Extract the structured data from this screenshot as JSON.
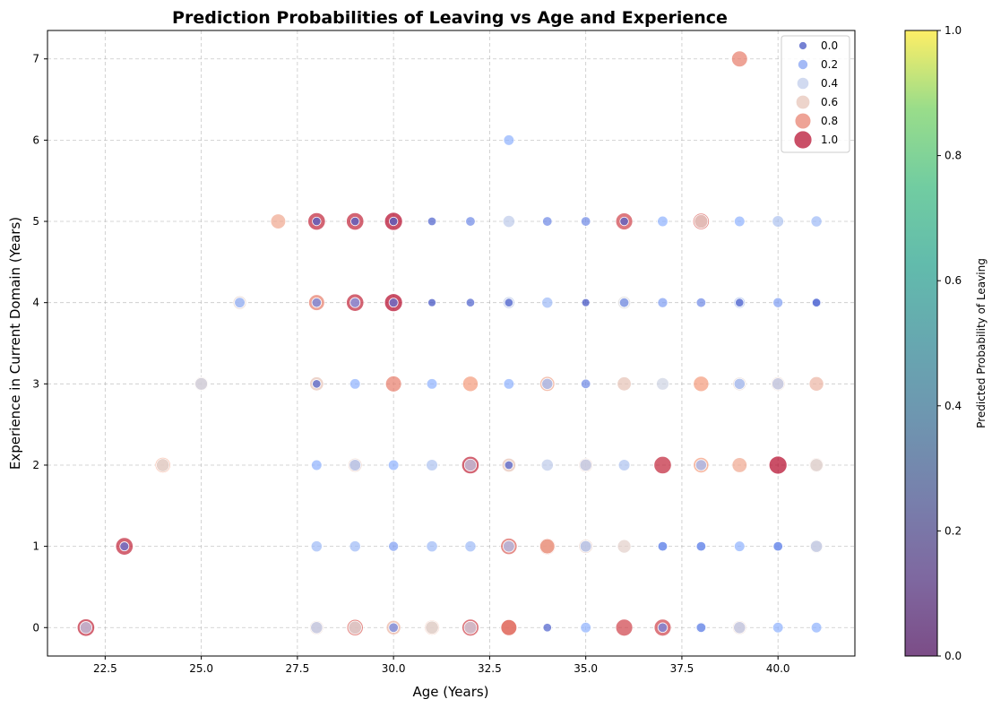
{
  "chart_data": {
    "type": "scatter",
    "title": "Prediction Probabilities of Leaving vs Age and Experience",
    "xlabel": "Age (Years)",
    "ylabel": "Experience in Current Domain (Years)",
    "xlim": [
      21.0,
      42.0
    ],
    "ylim": [
      -0.35,
      7.35
    ],
    "xticks": [
      22.5,
      25.0,
      27.5,
      30.0,
      32.5,
      35.0,
      37.5,
      40.0
    ],
    "xtick_labels": [
      "22.5",
      "25.0",
      "27.5",
      "30.0",
      "32.5",
      "35.0",
      "37.5",
      "40.0"
    ],
    "yticks": [
      0,
      1,
      2,
      3,
      4,
      5,
      6,
      7
    ],
    "ytick_labels": [
      "0",
      "1",
      "2",
      "3",
      "4",
      "5",
      "6",
      "7"
    ],
    "grid": true,
    "hue_colormap": "coolwarm",
    "size_range_prob": [
      0,
      1
    ],
    "legend": {
      "placement": "top-right",
      "entries": [
        {
          "label": "0.0",
          "p": 0.0
        },
        {
          "label": "0.2",
          "p": 0.2
        },
        {
          "label": "0.4",
          "p": 0.4
        },
        {
          "label": "0.6",
          "p": 0.6
        },
        {
          "label": "0.8",
          "p": 0.8
        },
        {
          "label": "1.0",
          "p": 1.0
        }
      ]
    },
    "colorbar": {
      "label": "Predicted Probability of Leaving",
      "colormap": "viridis",
      "ticks": [
        0.0,
        0.2,
        0.4,
        0.6,
        0.8,
        1.0
      ],
      "tick_labels": [
        "0.0",
        "0.2",
        "0.4",
        "0.6",
        "0.8",
        "1.0"
      ],
      "range": [
        0,
        1
      ]
    },
    "points": [
      {
        "x": 22,
        "y": 0,
        "p": 0.95
      },
      {
        "x": 22,
        "y": 0,
        "p": 0.4
      },
      {
        "x": 23,
        "y": 1,
        "p": 0.95
      },
      {
        "x": 23,
        "y": 1,
        "p": 0.1
      },
      {
        "x": 24,
        "y": 2,
        "p": 0.75
      },
      {
        "x": 24,
        "y": 2,
        "p": 0.5
      },
      {
        "x": 25,
        "y": 3,
        "p": 0.6
      },
      {
        "x": 25,
        "y": 3,
        "p": 0.45
      },
      {
        "x": 26,
        "y": 4,
        "p": 0.55
      },
      {
        "x": 26,
        "y": 4,
        "p": 0.25
      },
      {
        "x": 27,
        "y": 5,
        "p": 0.7
      },
      {
        "x": 28,
        "y": 0,
        "p": 0.6
      },
      {
        "x": 28,
        "y": 0,
        "p": 0.4
      },
      {
        "x": 28,
        "y": 1,
        "p": 0.3
      },
      {
        "x": 28,
        "y": 2,
        "p": 0.25
      },
      {
        "x": 28,
        "y": 3,
        "p": 0.6
      },
      {
        "x": 28,
        "y": 3,
        "p": 0.05
      },
      {
        "x": 28,
        "y": 4,
        "p": 0.8
      },
      {
        "x": 28,
        "y": 4,
        "p": 0.15
      },
      {
        "x": 28,
        "y": 5,
        "p": 0.95
      },
      {
        "x": 28,
        "y": 5,
        "p": 0.05
      },
      {
        "x": 29,
        "y": 0,
        "p": 0.85
      },
      {
        "x": 29,
        "y": 0,
        "p": 0.5
      },
      {
        "x": 29,
        "y": 1,
        "p": 0.3
      },
      {
        "x": 29,
        "y": 2,
        "p": 0.6
      },
      {
        "x": 29,
        "y": 2,
        "p": 0.35
      },
      {
        "x": 29,
        "y": 3,
        "p": 0.25
      },
      {
        "x": 29,
        "y": 4,
        "p": 0.95
      },
      {
        "x": 29,
        "y": 4,
        "p": 0.2
      },
      {
        "x": 29,
        "y": 5,
        "p": 0.95
      },
      {
        "x": 29,
        "y": 5,
        "p": 0.05
      },
      {
        "x": 30,
        "y": 0,
        "p": 0.65
      },
      {
        "x": 30,
        "y": 0,
        "p": 0.15
      },
      {
        "x": 30,
        "y": 1,
        "p": 0.2
      },
      {
        "x": 30,
        "y": 2,
        "p": 0.25
      },
      {
        "x": 30,
        "y": 3,
        "p": 0.8
      },
      {
        "x": 30,
        "y": 4,
        "p": 1.0
      },
      {
        "x": 30,
        "y": 4,
        "p": 0.1
      },
      {
        "x": 30,
        "y": 5,
        "p": 1.0
      },
      {
        "x": 30,
        "y": 5,
        "p": 0.05
      },
      {
        "x": 31,
        "y": 0,
        "p": 0.7
      },
      {
        "x": 31,
        "y": 0,
        "p": 0.5
      },
      {
        "x": 31,
        "y": 1,
        "p": 0.3
      },
      {
        "x": 31,
        "y": 2,
        "p": 0.35
      },
      {
        "x": 31,
        "y": 3,
        "p": 0.25
      },
      {
        "x": 31,
        "y": 4,
        "p": 0.0
      },
      {
        "x": 31,
        "y": 5,
        "p": 0.05
      },
      {
        "x": 32,
        "y": 0,
        "p": 0.9
      },
      {
        "x": 32,
        "y": 0,
        "p": 0.45
      },
      {
        "x": 32,
        "y": 1,
        "p": 0.3
      },
      {
        "x": 32,
        "y": 2,
        "p": 0.95
      },
      {
        "x": 32,
        "y": 2,
        "p": 0.4
      },
      {
        "x": 32,
        "y": 3,
        "p": 0.75
      },
      {
        "x": 32,
        "y": 4,
        "p": 0.05
      },
      {
        "x": 32,
        "y": 5,
        "p": 0.15
      },
      {
        "x": 33,
        "y": 0,
        "p": 0.9
      },
      {
        "x": 33,
        "y": 0,
        "p": 0.8
      },
      {
        "x": 33,
        "y": 1,
        "p": 0.85
      },
      {
        "x": 33,
        "y": 1,
        "p": 0.35
      },
      {
        "x": 33,
        "y": 2,
        "p": 0.6
      },
      {
        "x": 33,
        "y": 2,
        "p": 0.05
      },
      {
        "x": 33,
        "y": 3,
        "p": 0.25
      },
      {
        "x": 33,
        "y": 4,
        "p": 0.05
      },
      {
        "x": 33,
        "y": 4,
        "p": 0.4
      },
      {
        "x": 33,
        "y": 5,
        "p": 0.4
      },
      {
        "x": 33,
        "y": 6,
        "p": 0.25
      },
      {
        "x": 34,
        "y": 0,
        "p": 0.05
      },
      {
        "x": 34,
        "y": 1,
        "p": 0.85
      },
      {
        "x": 34,
        "y": 1,
        "p": 0.7
      },
      {
        "x": 34,
        "y": 2,
        "p": 0.4
      },
      {
        "x": 34,
        "y": 3,
        "p": 0.7
      },
      {
        "x": 34,
        "y": 3,
        "p": 0.3
      },
      {
        "x": 34,
        "y": 4,
        "p": 0.3
      },
      {
        "x": 34,
        "y": 5,
        "p": 0.15
      },
      {
        "x": 35,
        "y": 0,
        "p": 0.25
      },
      {
        "x": 35,
        "y": 1,
        "p": 0.6
      },
      {
        "x": 35,
        "y": 1,
        "p": 0.35
      },
      {
        "x": 35,
        "y": 2,
        "p": 0.6
      },
      {
        "x": 35,
        "y": 2,
        "p": 0.4
      },
      {
        "x": 35,
        "y": 3,
        "p": 0.15
      },
      {
        "x": 35,
        "y": 4,
        "p": 0.0
      },
      {
        "x": 35,
        "y": 5,
        "p": 0.15
      },
      {
        "x": 36,
        "y": 0,
        "p": 0.9
      },
      {
        "x": 36,
        "y": 1,
        "p": 0.55
      },
      {
        "x": 36,
        "y": 2,
        "p": 0.35
      },
      {
        "x": 36,
        "y": 3,
        "p": 0.6
      },
      {
        "x": 36,
        "y": 4,
        "p": 0.5
      },
      {
        "x": 36,
        "y": 4,
        "p": 0.15
      },
      {
        "x": 36,
        "y": 5,
        "p": 0.9
      },
      {
        "x": 36,
        "y": 5,
        "p": 0.05
      },
      {
        "x": 37,
        "y": 0,
        "p": 0.9
      },
      {
        "x": 37,
        "y": 0,
        "p": 0.15
      },
      {
        "x": 37,
        "y": 1,
        "p": 0.25
      },
      {
        "x": 37,
        "y": 1,
        "p": 0.15
      },
      {
        "x": 37,
        "y": 2,
        "p": 0.95
      },
      {
        "x": 37,
        "y": 3,
        "p": 0.45
      },
      {
        "x": 37,
        "y": 4,
        "p": 0.2
      },
      {
        "x": 37,
        "y": 5,
        "p": 0.25
      },
      {
        "x": 38,
        "y": 0,
        "p": 0.3
      },
      {
        "x": 38,
        "y": 0,
        "p": 0.15
      },
      {
        "x": 38,
        "y": 1,
        "p": 0.25
      },
      {
        "x": 38,
        "y": 1,
        "p": 0.15
      },
      {
        "x": 38,
        "y": 2,
        "p": 0.75
      },
      {
        "x": 38,
        "y": 2,
        "p": 0.3
      },
      {
        "x": 38,
        "y": 3,
        "p": 0.75
      },
      {
        "x": 38,
        "y": 4,
        "p": 0.15
      },
      {
        "x": 38,
        "y": 5,
        "p": 0.85
      },
      {
        "x": 38,
        "y": 5,
        "p": 0.55
      },
      {
        "x": 39,
        "y": 0,
        "p": 0.6
      },
      {
        "x": 39,
        "y": 0,
        "p": 0.4
      },
      {
        "x": 39,
        "y": 1,
        "p": 0.25
      },
      {
        "x": 39,
        "y": 2,
        "p": 0.7
      },
      {
        "x": 39,
        "y": 3,
        "p": 0.55
      },
      {
        "x": 39,
        "y": 3,
        "p": 0.3
      },
      {
        "x": 39,
        "y": 4,
        "p": 0.35
      },
      {
        "x": 39,
        "y": 4,
        "p": 0.05
      },
      {
        "x": 39,
        "y": 5,
        "p": 0.25
      },
      {
        "x": 39,
        "y": 7,
        "p": 0.8
      },
      {
        "x": 40,
        "y": 0,
        "p": 0.25
      },
      {
        "x": 40,
        "y": 1,
        "p": 0.25
      },
      {
        "x": 40,
        "y": 1,
        "p": 0.15
      },
      {
        "x": 40,
        "y": 2,
        "p": 1.0
      },
      {
        "x": 40,
        "y": 3,
        "p": 0.6
      },
      {
        "x": 40,
        "y": 3,
        "p": 0.4
      },
      {
        "x": 40,
        "y": 4,
        "p": 0.2
      },
      {
        "x": 40,
        "y": 5,
        "p": 0.35
      },
      {
        "x": 41,
        "y": 0,
        "p": 0.25
      },
      {
        "x": 41,
        "y": 1,
        "p": 0.55
      },
      {
        "x": 41,
        "y": 1,
        "p": 0.4
      },
      {
        "x": 41,
        "y": 2,
        "p": 0.65
      },
      {
        "x": 41,
        "y": 2,
        "p": 0.5
      },
      {
        "x": 41,
        "y": 3,
        "p": 0.65
      },
      {
        "x": 41,
        "y": 4,
        "p": 0.2
      },
      {
        "x": 41,
        "y": 4,
        "p": 0.05
      },
      {
        "x": 41,
        "y": 5,
        "p": 0.3
      }
    ]
  }
}
